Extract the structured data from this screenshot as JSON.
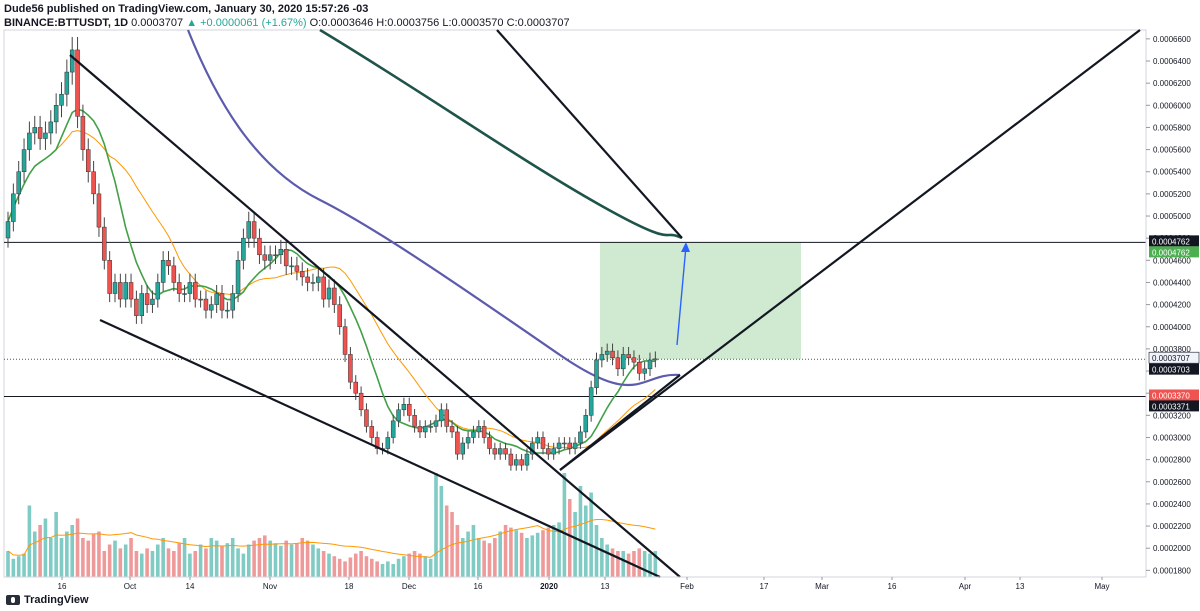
{
  "header": {
    "publisher_line": "Dude56 published on TradingView.com, January 30, 2020 15:57:26 -03",
    "symbol": "BINANCE:BTTUSDT, 1D",
    "last": "0.0003707",
    "change": "▲ +0.0000061 (+1.67%)",
    "ohlc": "O:0.0003646 H:0.0003756 L:0.0003570 C:0.0003707"
  },
  "footer": {
    "brand": "TradingView"
  },
  "colors": {
    "up": "#26a69a",
    "down": "#ef5350",
    "ema_fast": "#43a047",
    "ema_mid": "#ff9800",
    "ma200": "#5c5bad",
    "ma_long": "#1e5449",
    "profit_zone": "#c8e6c9",
    "loss_zone": "#ffcdd2"
  },
  "chart_data": {
    "type": "candlestick",
    "y_axis": {
      "ticks": [
        "0.0006600",
        "0.0006400",
        "0.0006200",
        "0.0006000",
        "0.0005800",
        "0.0005600",
        "0.0005400",
        "0.0005200",
        "0.0005000",
        "0.0004800",
        "0.0004600",
        "0.0004400",
        "0.0004200",
        "0.0004000",
        "0.0003800",
        "0.0003600",
        "0.0003400",
        "0.0003200",
        "0.0003000",
        "0.0002800",
        "0.0002600",
        "0.0002400",
        "0.0002200",
        "0.0002000",
        "0.0001800"
      ],
      "range": [
        0.000174,
        0.000668
      ]
    },
    "x_axis": {
      "ticks": [
        "16",
        "Oct",
        "14",
        "Nov",
        "18",
        "Dec",
        "16",
        "2020",
        "13",
        "Feb",
        "17",
        "Mar",
        "16",
        "Apr",
        "13",
        "May"
      ]
    },
    "price_labels": [
      {
        "text": "0.0004762",
        "style": "dark",
        "value": 0.0004762
      },
      {
        "text": "0.0004762",
        "style": "green",
        "value": 0.0004762
      },
      {
        "text": "0.0003707",
        "style": "gray",
        "value": 0.0003707
      },
      {
        "text": "0.0003703",
        "style": "dark",
        "value": 0.0003703
      },
      {
        "text": "0.0003370",
        "style": "red",
        "value": 0.000337
      },
      {
        "text": "0.0003371",
        "style": "dark",
        "value": 0.0003371
      }
    ],
    "closes": [
      0.000495,
      0.00052,
      0.00054,
      0.00056,
      0.000575,
      0.00058,
      0.00057,
      0.000575,
      0.000585,
      0.0006,
      0.00061,
      0.00063,
      0.00065,
      0.00059,
      0.00056,
      0.00054,
      0.00052,
      0.00049,
      0.00046,
      0.00043,
      0.00044,
      0.000425,
      0.00044,
      0.000425,
      0.00041,
      0.00043,
      0.00042,
      0.000425,
      0.00044,
      0.00046,
      0.000455,
      0.00044,
      0.00043,
      0.00043,
      0.00044,
      0.000425,
      0.000425,
      0.000415,
      0.00042,
      0.00043,
      0.000415,
      0.000415,
      0.00043,
      0.00046,
      0.00048,
      0.000495,
      0.00048,
      0.000465,
      0.00046,
      0.000465,
      0.000465,
      0.00047,
      0.000455,
      0.000455,
      0.00045,
      0.000445,
      0.00044,
      0.00044,
      0.000445,
      0.000425,
      0.000435,
      0.00042,
      0.0004,
      0.000375,
      0.00035,
      0.00034,
      0.000325,
      0.00031,
      0.0003,
      0.00029,
      0.00029,
      0.0003,
      0.000315,
      0.000325,
      0.00033,
      0.00032,
      0.00031,
      0.000305,
      0.00031,
      0.00031,
      0.000315,
      0.000325,
      0.00031,
      0.000305,
      0.000285,
      0.000295,
      0.0003,
      0.000305,
      0.00031,
      0.0003,
      0.00029,
      0.000285,
      0.00029,
      0.000285,
      0.000275,
      0.00028,
      0.000275,
      0.000285,
      0.000295,
      0.0003,
      0.00029,
      0.000285,
      0.00029,
      0.000295,
      0.000295,
      0.00029,
      0.000295,
      0.000305,
      0.00032,
      0.000345,
      0.00037,
      0.000375,
      0.000378,
      0.000372,
      0.000362,
      0.000375,
      0.000372,
      0.000368,
      0.000358,
      0.000362,
      0.00037,
      0.000371
    ],
    "volumes": [
      0.2,
      0.14,
      0.16,
      0.18,
      0.55,
      0.35,
      0.4,
      0.45,
      0.3,
      0.5,
      0.3,
      0.35,
      0.4,
      0.45,
      0.3,
      0.28,
      0.33,
      0.35,
      0.2,
      0.25,
      0.28,
      0.22,
      0.25,
      0.3,
      0.2,
      0.18,
      0.22,
      0.2,
      0.25,
      0.3,
      0.22,
      0.2,
      0.26,
      0.3,
      0.18,
      0.2,
      0.25,
      0.22,
      0.3,
      0.28,
      0.24,
      0.26,
      0.3,
      0.22,
      0.18,
      0.25,
      0.28,
      0.3,
      0.32,
      0.28,
      0.26,
      0.24,
      0.28,
      0.25,
      0.26,
      0.3,
      0.28,
      0.25,
      0.22,
      0.2,
      0.18,
      0.16,
      0.14,
      0.12,
      0.15,
      0.18,
      0.2,
      0.16,
      0.14,
      0.12,
      0.1,
      0.12,
      0.1,
      0.14,
      0.16,
      0.18,
      0.2,
      0.18,
      0.16,
      0.14,
      0.8,
      0.7,
      0.55,
      0.5,
      0.4,
      0.3,
      0.35,
      0.4,
      0.3,
      0.28,
      0.26,
      0.3,
      0.35,
      0.4,
      0.38,
      0.36,
      0.34,
      0.3,
      0.32,
      0.34,
      0.36,
      0.38,
      0.4,
      0.42,
      0.8,
      0.6,
      0.5,
      0.7,
      0.55,
      0.65,
      0.4,
      0.3,
      0.25,
      0.22,
      0.2,
      0.2,
      0.18,
      0.2,
      0.22,
      0.2,
      0.18,
      0.2
    ],
    "horizontal_levels": [
      0.0004762,
      0.0003707,
      0.000337
    ],
    "target_box": {
      "from": 0.0003707,
      "to": 0.0004762
    },
    "stop_box": {
      "from": 0.000337,
      "to": 0.0003707
    }
  }
}
